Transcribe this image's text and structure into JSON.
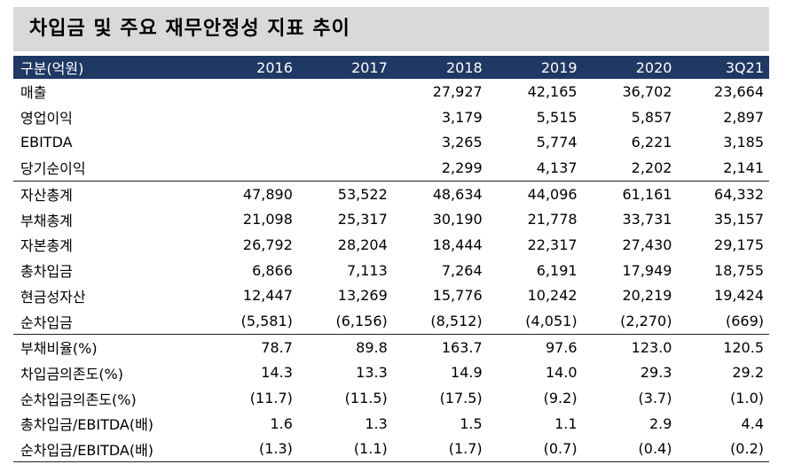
{
  "title": "차입금 및 주요 재무안정성 지표 추이",
  "table": {
    "header": [
      "구분(억원)",
      "2016",
      "2017",
      "2018",
      "2019",
      "2020",
      "3Q21"
    ],
    "rows": [
      [
        "매출",
        null,
        null,
        "27,927",
        "42,165",
        "36,702",
        "23,664"
      ],
      [
        "영업이익",
        null,
        null,
        "3,179",
        "5,515",
        "5,857",
        "2,897"
      ],
      [
        "EBITDA",
        null,
        null,
        "3,265",
        "5,774",
        "6,221",
        "3,185"
      ],
      [
        "당기순이익",
        null,
        null,
        "2,299",
        "4,137",
        "2,202",
        "2,141"
      ],
      [
        "자산총계",
        "47,890",
        "53,522",
        "48,634",
        "44,096",
        "61,161",
        "64,332"
      ],
      [
        "부채총계",
        "21,098",
        "25,317",
        "30,190",
        "21,778",
        "33,731",
        "35,157"
      ],
      [
        "자본총계",
        "26,792",
        "28,204",
        "18,444",
        "22,317",
        "27,430",
        "29,175"
      ],
      [
        "총차입금",
        "6,866",
        "7,113",
        "7,264",
        "6,191",
        "17,949",
        "18,755"
      ],
      [
        "현금성자산",
        "12,447",
        "13,269",
        "15,776",
        "10,242",
        "20,219",
        "19,424"
      ],
      [
        "순차입금",
        "(5,581)",
        "(6,156)",
        "(8,512)",
        "(4,051)",
        "(2,270)",
        "(669)"
      ],
      [
        "부채비율(%)",
        "78.7",
        "89.8",
        "163.7",
        "97.6",
        "123.0",
        "120.5"
      ],
      [
        "차입금의존도(%)",
        "14.3",
        "13.3",
        "14.9",
        "14.0",
        "29.3",
        "29.2"
      ],
      [
        "순차입금의존도(%)",
        "(11.7)",
        "(11.5)",
        "(17.5)",
        "(9.2)",
        "(3.7)",
        "(1.0)"
      ],
      [
        "총차입금/EBITDA(배)",
        "1.6",
        "1.3",
        "1.5",
        "1.1",
        "2.9",
        "4.4"
      ],
      [
        "순차입금/EBITDA(배)",
        "(1.3)",
        "(1.1)",
        "(1.7)",
        "(0.7)",
        "(0.4)",
        "(0.2)"
      ]
    ]
  }
}
